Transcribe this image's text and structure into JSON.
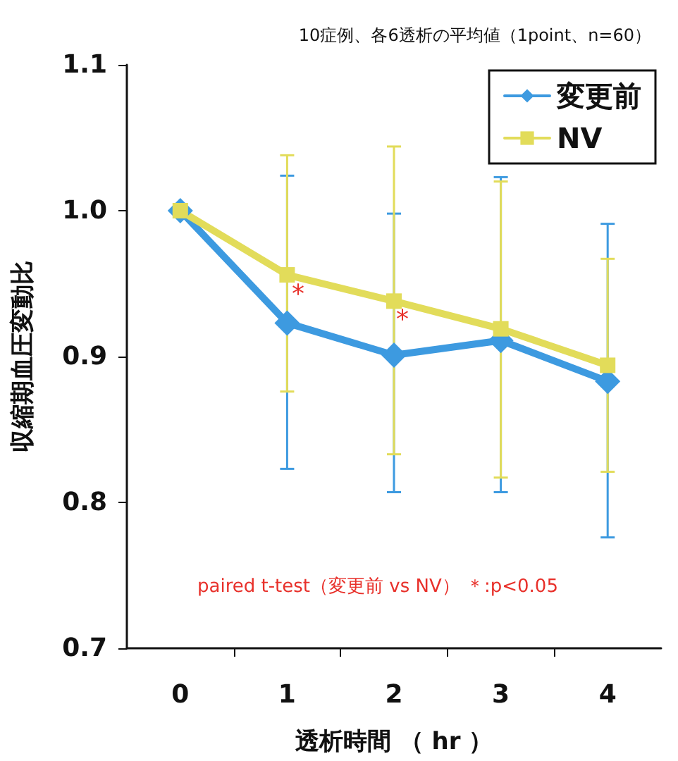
{
  "chart_data": {
    "type": "line",
    "title": "10症例、各6透析の平均値（1point、n=60）",
    "xlabel": "透析時間 （ hr ）",
    "ylabel": "収縮期血圧変動比",
    "x": [
      0,
      1,
      2,
      3,
      4
    ],
    "series": [
      {
        "name": "変更前",
        "color": "#3d9ae0",
        "marker": "diamond",
        "values": [
          1.0,
          0.923,
          0.901,
          0.911,
          0.883
        ],
        "errors": [
          null,
          [
            0.823,
            1.024
          ],
          [
            0.807,
            0.998
          ],
          [
            0.807,
            1.023
          ],
          [
            0.776,
            0.991
          ]
        ]
      },
      {
        "name": "NV",
        "color": "#e2dc5a",
        "marker": "square",
        "values": [
          1.0,
          0.956,
          0.938,
          0.919,
          0.894
        ],
        "errors": [
          null,
          [
            0.876,
            1.038
          ],
          [
            0.833,
            1.044
          ],
          [
            0.817,
            1.02
          ],
          [
            0.821,
            0.967
          ]
        ]
      }
    ],
    "xlim": [
      -0.5,
      4.5
    ],
    "xticks": [
      0,
      {
        "value": 0.5,
        "label": null
      },
      1,
      {
        "value": 1.5,
        "label": null
      },
      2,
      {
        "value": 2.5,
        "label": null
      },
      3,
      {
        "value": 3.5,
        "label": null
      },
      4
    ],
    "ylim": [
      0.7,
      1.1
    ],
    "yticks": [
      0.7,
      0.8,
      0.9,
      {
        "value": 1.0,
        "label": "1.0"
      },
      1.1
    ],
    "grid": false,
    "legend": "top right",
    "annotations": [
      "paired t-test（変更前 vs NV） ＊:p<0.05",
      "*",
      "*"
    ]
  }
}
